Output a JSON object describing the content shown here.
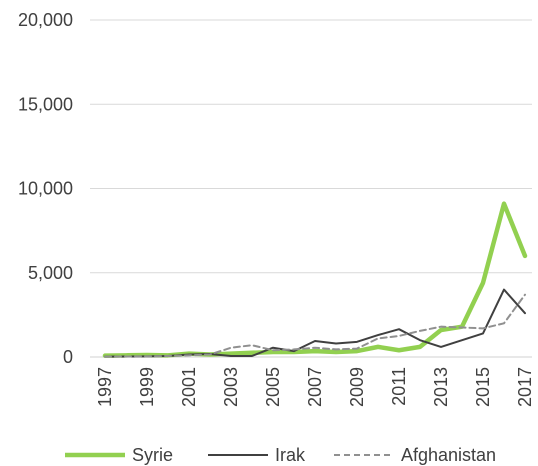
{
  "chart_data": {
    "type": "line",
    "title": "",
    "xlabel": "",
    "ylabel": "",
    "x": [
      1997,
      1998,
      1999,
      2000,
      2001,
      2002,
      2003,
      2004,
      2005,
      2006,
      2007,
      2008,
      2009,
      2010,
      2011,
      2012,
      2013,
      2014,
      2015,
      2016,
      2017
    ],
    "x_tick_labels": [
      "1997",
      "1999",
      "2001",
      "2003",
      "2005",
      "2007",
      "2009",
      "2011",
      "2013",
      "2015",
      "2017"
    ],
    "ylim": [
      0,
      20000
    ],
    "y_ticks": [
      0,
      5000,
      10000,
      15000,
      20000
    ],
    "y_tick_labels": [
      "0",
      "5,000",
      "10,000",
      "15,000",
      "20,000"
    ],
    "grid": true,
    "legend_position": "bottom",
    "series": [
      {
        "name": "Syrie",
        "color": "#92d050",
        "style": "solid-thick",
        "values": [
          80,
          100,
          120,
          100,
          200,
          150,
          200,
          250,
          300,
          300,
          350,
          300,
          350,
          600,
          400,
          600,
          1600,
          1800,
          4400,
          9100,
          6000
        ]
      },
      {
        "name": "Irak",
        "color": "#404040",
        "style": "solid",
        "values": [
          20,
          30,
          40,
          60,
          150,
          180,
          60,
          60,
          550,
          350,
          950,
          800,
          900,
          1300,
          1650,
          1000,
          600,
          1000,
          1400,
          4000,
          2600
        ]
      },
      {
        "name": "Afghanistan",
        "color": "#909090",
        "style": "dashed",
        "values": [
          20,
          30,
          40,
          60,
          100,
          150,
          550,
          700,
          400,
          450,
          550,
          450,
          500,
          1100,
          1250,
          1550,
          1800,
          1750,
          1700,
          2000,
          3700
        ]
      }
    ]
  }
}
